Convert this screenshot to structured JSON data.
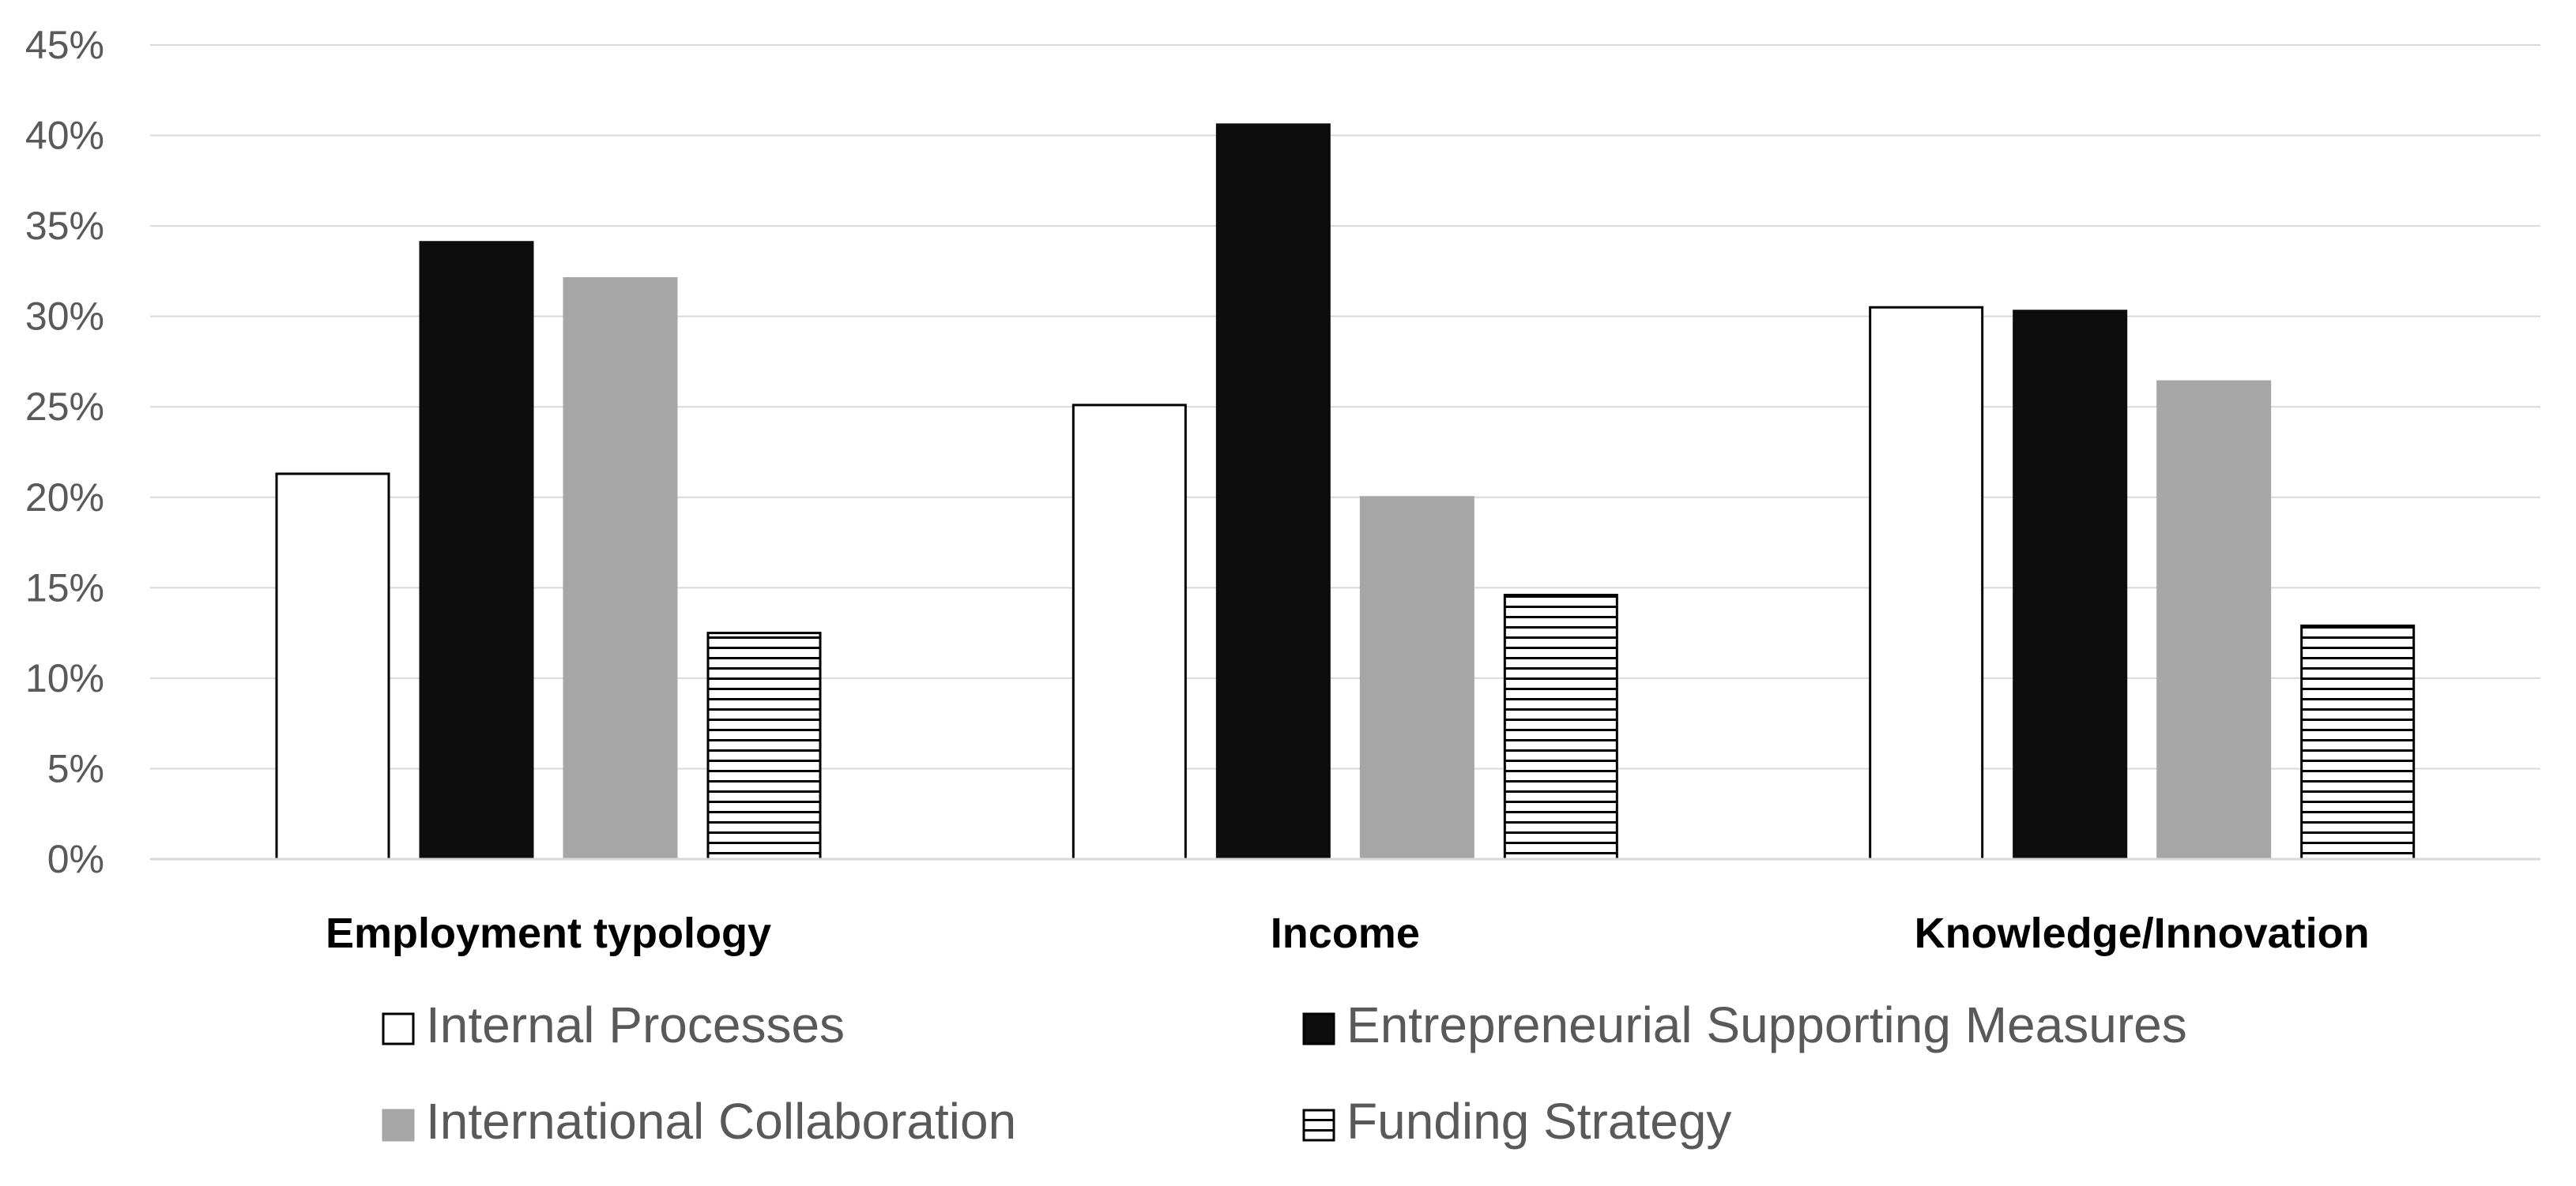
{
  "chart_data": {
    "type": "bar",
    "categories": [
      "Employment typology",
      "Income",
      "Knowledge/Innovation"
    ],
    "series": [
      {
        "name": "Internal Processes",
        "values": [
          21.3,
          25.1,
          30.5
        ],
        "color": "#ffffff",
        "stroke": "#000000",
        "pattern": "none"
      },
      {
        "name": "Entrepreneurial Supporting Measures",
        "values": [
          34.1,
          40.6,
          30.3
        ],
        "color": "#0d0d0d",
        "stroke": "#0d0d0d",
        "pattern": "none"
      },
      {
        "name": "International Collaboration",
        "values": [
          32.1,
          20.0,
          26.4
        ],
        "color": "#a6a6a6",
        "stroke": "#a6a6a6",
        "pattern": "none"
      },
      {
        "name": "Funding Strategy",
        "values": [
          12.5,
          14.6,
          12.9
        ],
        "color": "#ffffff",
        "stroke": "#000000",
        "pattern": "horizontal-lines"
      }
    ],
    "ylim": [
      0,
      45
    ],
    "ytick_step": 5,
    "ytick_format": "%",
    "grid": true,
    "legend_position": "bottom"
  }
}
